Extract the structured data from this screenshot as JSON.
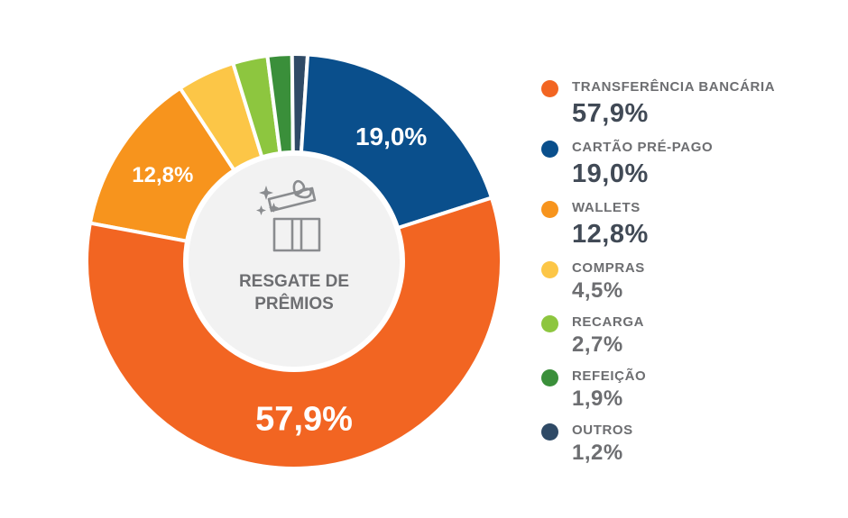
{
  "chart_data": {
    "type": "pie",
    "variant": "donut",
    "center_label": [
      "RESGATE DE",
      "PRÊMIOS"
    ],
    "center_icon": "gift-box-icon",
    "slices": [
      {
        "label": "TRANSFERÊNCIA BANCÁRIA",
        "value": 57.9,
        "display": "57,9%",
        "color": "#f26522",
        "inner_label": "57,9%"
      },
      {
        "label": "CARTÃO PRÉ-PAGO",
        "value": 19.0,
        "display": "19,0%",
        "color": "#0a4f8c",
        "inner_label": "19,0%"
      },
      {
        "label": "WALLETS",
        "value": 12.8,
        "display": "12,8%",
        "color": "#f7941d",
        "inner_label": "12,8%"
      },
      {
        "label": "COMPRAS",
        "value": 4.5,
        "display": "4,5%",
        "color": "#fcc647",
        "inner_label": ""
      },
      {
        "label": "RECARGA",
        "value": 2.7,
        "display": "2,7%",
        "color": "#8dc63f",
        "inner_label": ""
      },
      {
        "label": "REFEIÇÃO",
        "value": 1.9,
        "display": "1,9%",
        "color": "#3a8f3a",
        "inner_label": ""
      },
      {
        "label": "OUTROS",
        "value": 1.2,
        "display": "1,2%",
        "color": "#2f4a66",
        "inner_label": ""
      }
    ],
    "legend_position": "right"
  }
}
